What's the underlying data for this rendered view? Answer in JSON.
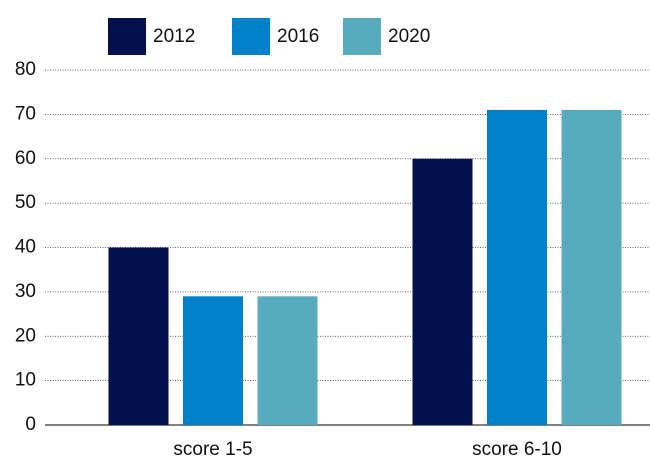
{
  "chart_data": {
    "type": "bar",
    "categories": [
      "score 1-5",
      "score 6-10"
    ],
    "series": [
      {
        "name": "2012",
        "color": "#03104e",
        "values": [
          40,
          60
        ]
      },
      {
        "name": "2016",
        "color": "#0080c9",
        "values": [
          29,
          71
        ]
      },
      {
        "name": "2020",
        "color": "#58abbc",
        "values": [
          29,
          71
        ]
      }
    ],
    "ylim": [
      0,
      80
    ],
    "yticks": [
      0,
      10,
      20,
      30,
      40,
      50,
      60,
      70,
      80
    ],
    "grid": true,
    "legend": "top"
  }
}
